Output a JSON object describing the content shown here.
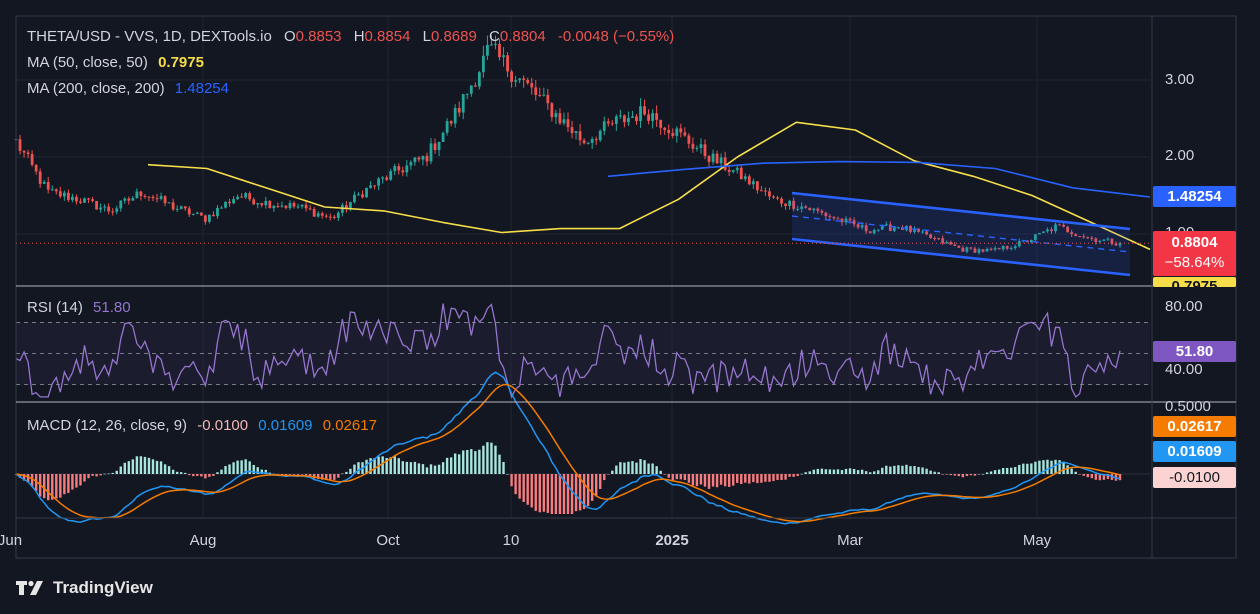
{
  "header": {
    "symbol": "THETA/USD - VVS, 1D, DEXTools.io",
    "open_label": "O",
    "open": "0.8853",
    "high_label": "H",
    "high": "0.8854",
    "low_label": "L",
    "low": "0.8689",
    "close_label": "C",
    "close": "0.8804",
    "change": "-0.0048 (−0.55%)"
  },
  "ma50": {
    "label": "MA (50, close, 50)",
    "value": "0.7975",
    "color": "#f6de4b"
  },
  "ma200": {
    "label": "MA (200, close, 200)",
    "value": "1.48254",
    "color": "#2962ff"
  },
  "rsi": {
    "label": "RSI (14)",
    "value": "51.80",
    "color": "#9575cd"
  },
  "macd": {
    "label": "MACD (12, 26, close, 9)",
    "hist": "-0.0100",
    "macd": "0.01609",
    "signal": "0.02617",
    "macd_color": "#2196f3",
    "signal_color": "#f57c00"
  },
  "price_axis": {
    "ticks": [
      "3.00",
      "2.00"
    ],
    "hidden_tick": "1.00"
  },
  "rsi_axis": {
    "ticks": [
      "80.00",
      "40.00"
    ]
  },
  "macd_axis": {
    "ticks": [
      "0.5000"
    ]
  },
  "tags": {
    "ma200": "1.48254",
    "price": "0.8804",
    "pct": "−58.64%",
    "ma50": "0.7975",
    "rsi": "51.80",
    "signal": "0.02617",
    "macd": "0.01609",
    "hist": "-0.0100"
  },
  "time_axis": [
    "Jun",
    "Aug",
    "Oct",
    "10",
    "2025",
    "Mar",
    "May"
  ],
  "brand": "TradingView",
  "colors": {
    "up": "#26a69a",
    "down": "#ef5350",
    "channel": "#2962ff",
    "bg": "#131722",
    "grid": "#1f2430"
  },
  "chart_data": [
    {
      "type": "candlestick",
      "title": "THETA/USD - VVS, 1D, DEXTools.io",
      "x_labels": [
        "Jun",
        "Aug",
        "Oct",
        "10",
        "2025",
        "Mar",
        "May"
      ],
      "y_ticks": [
        "3.00",
        "2.00"
      ],
      "series": [
        {
          "name": "MA (50, close, 50)",
          "type": "line",
          "approx_values": [
            1.9,
            1.85,
            1.6,
            1.35,
            1.3,
            1.15,
            1.02,
            1.07,
            1.07,
            1.45,
            2.0,
            2.45,
            2.35,
            1.95,
            1.75,
            1.5,
            1.15,
            0.8
          ]
        },
        {
          "name": "MA (200, close, 200)",
          "type": "line",
          "approx_values": [
            1.75,
            1.84,
            1.92,
            1.94,
            1.93,
            1.85,
            1.6,
            1.48
          ]
        }
      ],
      "close_path_approx": [
        2.2,
        1.55,
        1.45,
        1.3,
        1.55,
        1.35,
        1.2,
        1.5,
        1.4,
        1.35,
        1.2,
        1.55,
        1.8,
        2.0,
        2.6,
        3.4,
        3.0,
        2.6,
        2.2,
        2.45,
        2.6,
        2.3,
        2.0,
        1.75,
        1.45,
        1.35,
        1.2,
        1.05,
        1.1,
        0.95,
        0.8,
        0.78,
        0.9,
        1.1,
        0.95,
        0.88
      ],
      "descending_channel": true,
      "last": 0.8804,
      "change_pct": "−58.64%"
    },
    {
      "type": "line",
      "title": "RSI (14)",
      "y_ticks": [
        "80.00",
        "40.00"
      ],
      "last": 51.8,
      "bands": [
        70,
        50,
        30
      ]
    },
    {
      "type": "bar",
      "title": "MACD (12, 26, close, 9)",
      "y_ticks": [
        "0.5000"
      ],
      "series": [
        {
          "name": "MACD",
          "last": 0.01609
        },
        {
          "name": "Signal",
          "last": 0.02617
        },
        {
          "name": "Histogram",
          "last": -0.01
        }
      ]
    }
  ]
}
